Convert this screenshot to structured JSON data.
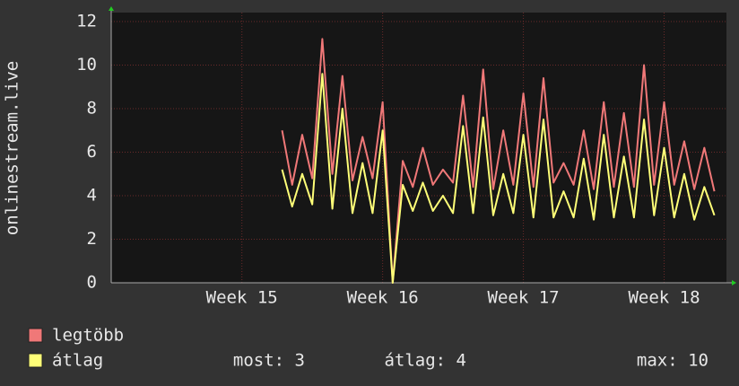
{
  "chart_data": {
    "type": "line",
    "y_label": "onlinestream.live",
    "x": [
      8.5,
      9.0,
      9.5,
      10.0,
      10.5,
      11.0,
      11.5,
      12.0,
      12.5,
      13.0,
      13.5,
      14.0,
      14.5,
      15.0,
      15.5,
      16.0,
      16.5,
      17.0,
      17.5,
      18.0,
      18.5,
      19.0,
      19.5,
      20.0,
      20.5,
      21.0,
      21.5,
      22.0,
      22.5,
      23.0,
      23.5,
      24.0,
      24.5,
      25.0,
      25.5,
      26.0,
      26.5,
      27.0,
      27.5,
      28.0,
      28.5,
      29.0,
      29.5,
      30.0
    ],
    "series": [
      {
        "name": "legtöbb",
        "color": "#f07878",
        "values": [
          7.0,
          4.5,
          6.8,
          4.8,
          11.2,
          5.0,
          9.5,
          4.7,
          6.7,
          4.8,
          8.3,
          0,
          5.6,
          4.4,
          6.2,
          4.5,
          5.2,
          4.6,
          8.6,
          4.4,
          9.8,
          4.3,
          7.0,
          4.5,
          8.7,
          4.4,
          9.4,
          4.6,
          5.5,
          4.5,
          7.0,
          4.3,
          8.3,
          4.4,
          7.8,
          4.4,
          10.0,
          4.5,
          8.3,
          4.5,
          6.5,
          4.3,
          6.2,
          4.2
        ]
      },
      {
        "name": "átlag",
        "color": "#ffff78",
        "values": [
          5.2,
          3.5,
          5.0,
          3.6,
          9.6,
          3.4,
          8.0,
          3.2,
          5.5,
          3.2,
          7.0,
          0,
          4.5,
          3.3,
          4.6,
          3.3,
          4.0,
          3.2,
          7.2,
          3.2,
          7.6,
          3.1,
          5.0,
          3.2,
          6.8,
          3.0,
          7.5,
          3.0,
          4.2,
          3.0,
          5.7,
          2.9,
          6.8,
          3.0,
          5.8,
          3.0,
          7.5,
          3.1,
          6.2,
          3.0,
          5.0,
          2.9,
          4.4,
          3.1
        ]
      }
    ],
    "stats": [
      "most: 3",
      "átlag: 4",
      "max: 10"
    ],
    "xlim": [
      0,
      30.6
    ],
    "xticks": [
      {
        "value": 6.5,
        "label": "Week 15"
      },
      {
        "value": 13.5,
        "label": "Week 16"
      },
      {
        "value": 20.5,
        "label": "Week 17"
      },
      {
        "value": 27.5,
        "label": "Week 18"
      }
    ],
    "ylim": [
      0,
      12
    ],
    "yticks": [
      0,
      2,
      4,
      6,
      8,
      10,
      12
    ],
    "grid": true
  }
}
